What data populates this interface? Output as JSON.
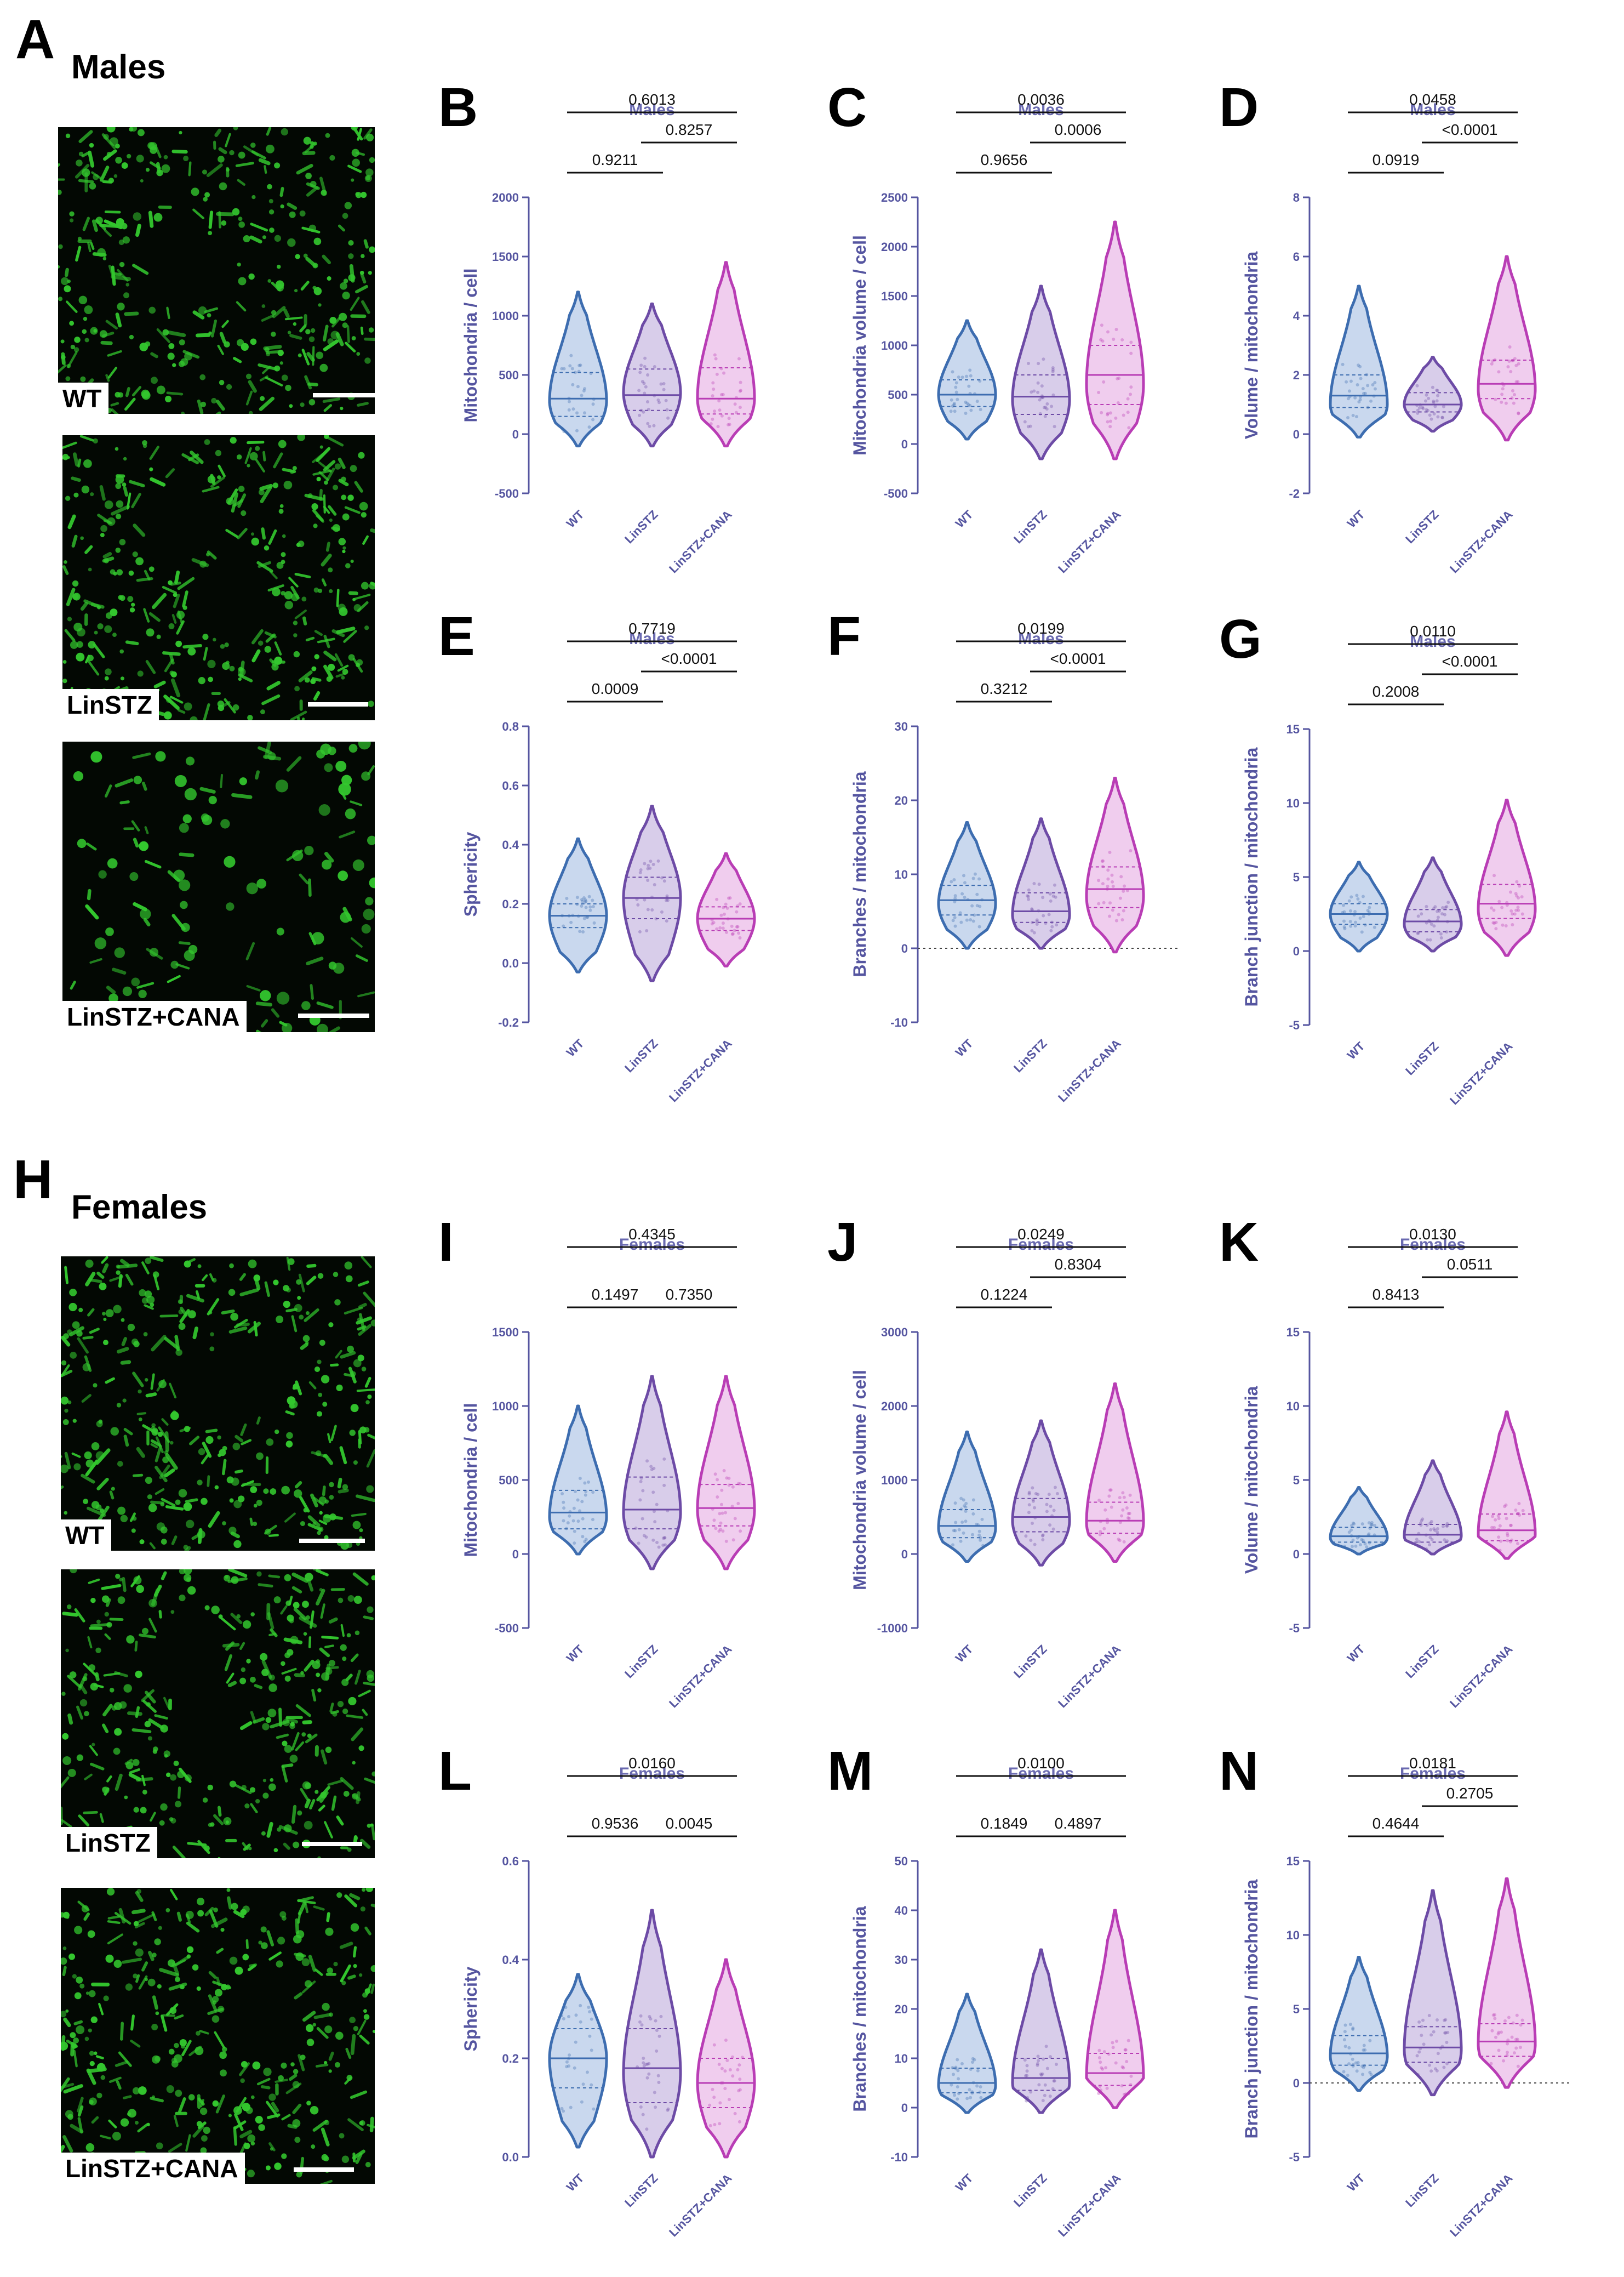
{
  "sections": {
    "males": {
      "letter": "A",
      "title": "Males"
    },
    "females": {
      "letter": "H",
      "title": "Females"
    }
  },
  "micrographs": [
    {
      "label": "WT"
    },
    {
      "label": "LinSTZ"
    },
    {
      "label": "LinSTZ+CANA"
    },
    {
      "label": "WT"
    },
    {
      "label": "LinSTZ"
    },
    {
      "label": "LinSTZ+CANA"
    }
  ],
  "colors": {
    "WT": "#3d6db0",
    "LinSTZ": "#6d4ba6",
    "LinSTZ+CANA": "#b93db5",
    "axis": "#5555a0",
    "title": "#6a6ab0"
  },
  "chart_data": [
    {
      "panel": "B",
      "type": "violin",
      "title": "Males",
      "ylabel": "Mitochondria / cell",
      "categories": [
        "WT",
        "LinSTZ",
        "LinSTZ+CANA"
      ],
      "ylim": [
        -500,
        2000
      ],
      "yticks": [
        -500,
        0,
        500,
        1000,
        1500,
        2000
      ],
      "zero_line": false,
      "series": [
        {
          "min": -100,
          "max": 1200,
          "median": 300,
          "q1": 150,
          "q3": 520,
          "peak": 280
        },
        {
          "min": -100,
          "max": 1100,
          "median": 330,
          "q1": 200,
          "q3": 550,
          "peak": 350
        },
        {
          "min": -100,
          "max": 1450,
          "median": 300,
          "q1": 170,
          "q3": 560,
          "peak": 300
        }
      ],
      "brackets": [
        {
          "from": 0,
          "to": 1,
          "p": "0.9211",
          "level": 1
        },
        {
          "from": 1,
          "to": 2,
          "p": "0.8257",
          "level": 2
        },
        {
          "from": 0,
          "to": 2,
          "p": "0.6013",
          "level": 3
        }
      ]
    },
    {
      "panel": "C",
      "type": "violin",
      "title": "Males",
      "ylabel": "Mitochondria volume / cell",
      "categories": [
        "WT",
        "LinSTZ",
        "LinSTZ+CANA"
      ],
      "ylim": [
        -500,
        2500
      ],
      "yticks": [
        -500,
        0,
        500,
        1000,
        1500,
        2000,
        2500
      ],
      "zero_line": false,
      "series": [
        {
          "min": 50,
          "max": 1250,
          "median": 500,
          "q1": 380,
          "q3": 650,
          "peak": 500
        },
        {
          "min": -150,
          "max": 1600,
          "median": 480,
          "q1": 300,
          "q3": 700,
          "peak": 450
        },
        {
          "min": -150,
          "max": 2250,
          "median": 700,
          "q1": 400,
          "q3": 1000,
          "peak": 600
        }
      ],
      "brackets": [
        {
          "from": 0,
          "to": 1,
          "p": "0.9656",
          "level": 1
        },
        {
          "from": 1,
          "to": 2,
          "p": "0.0006",
          "level": 2
        },
        {
          "from": 0,
          "to": 2,
          "p": "0.0036",
          "level": 3
        }
      ]
    },
    {
      "panel": "D",
      "type": "violin",
      "title": "Males",
      "ylabel": "Volume / mitochondria",
      "categories": [
        "WT",
        "LinSTZ",
        "LinSTZ+CANA"
      ],
      "ylim": [
        -2,
        8
      ],
      "yticks": [
        -2,
        0,
        2,
        4,
        6,
        8
      ],
      "zero_line": false,
      "series": [
        {
          "min": -0.1,
          "max": 5.0,
          "median": 1.3,
          "q1": 0.9,
          "q3": 2.0,
          "peak": 1.0
        },
        {
          "min": 0.1,
          "max": 2.6,
          "median": 1.0,
          "q1": 0.75,
          "q3": 1.4,
          "peak": 1.0
        },
        {
          "min": -0.2,
          "max": 6.0,
          "median": 1.7,
          "q1": 1.2,
          "q3": 2.5,
          "peak": 1.5
        }
      ],
      "brackets": [
        {
          "from": 0,
          "to": 1,
          "p": "0.0919",
          "level": 1
        },
        {
          "from": 1,
          "to": 2,
          "p": "<0.0001",
          "level": 2
        },
        {
          "from": 0,
          "to": 2,
          "p": "0.0458",
          "level": 3
        }
      ]
    },
    {
      "panel": "E",
      "type": "violin",
      "title": "Males",
      "ylabel": "Sphericity",
      "categories": [
        "WT",
        "LinSTZ",
        "LinSTZ+CANA"
      ],
      "ylim": [
        -0.2,
        0.8
      ],
      "yticks": [
        -0.2,
        0.0,
        0.2,
        0.4,
        0.6,
        0.8
      ],
      "zero_line": false,
      "series": [
        {
          "min": -0.03,
          "max": 0.42,
          "median": 0.16,
          "q1": 0.12,
          "q3": 0.2,
          "peak": 0.16
        },
        {
          "min": -0.06,
          "max": 0.53,
          "median": 0.22,
          "q1": 0.15,
          "q3": 0.29,
          "peak": 0.22
        },
        {
          "min": -0.01,
          "max": 0.37,
          "median": 0.15,
          "q1": 0.11,
          "q3": 0.19,
          "peak": 0.15
        }
      ],
      "brackets": [
        {
          "from": 0,
          "to": 1,
          "p": "0.0009",
          "level": 1
        },
        {
          "from": 1,
          "to": 2,
          "p": "<0.0001",
          "level": 2
        },
        {
          "from": 0,
          "to": 2,
          "p": "0.7719",
          "level": 3
        }
      ]
    },
    {
      "panel": "F",
      "type": "violin",
      "title": "Males",
      "ylabel": "Branches / mitochondria",
      "categories": [
        "WT",
        "LinSTZ",
        "LinSTZ+CANA"
      ],
      "ylim": [
        -10,
        30
      ],
      "yticks": [
        -10,
        0,
        10,
        20,
        30
      ],
      "zero_line": true,
      "series": [
        {
          "min": 0,
          "max": 17,
          "median": 6.5,
          "q1": 4.5,
          "q3": 8.5,
          "peak": 6
        },
        {
          "min": 0,
          "max": 17.5,
          "median": 5,
          "q1": 3.5,
          "q3": 7.5,
          "peak": 4.5
        },
        {
          "min": -0.5,
          "max": 23,
          "median": 8,
          "q1": 5.5,
          "q3": 11,
          "peak": 7
        }
      ],
      "brackets": [
        {
          "from": 0,
          "to": 1,
          "p": "0.3212",
          "level": 1
        },
        {
          "from": 1,
          "to": 2,
          "p": "<0.0001",
          "level": 2
        },
        {
          "from": 0,
          "to": 2,
          "p": "0.0199",
          "level": 3
        }
      ]
    },
    {
      "panel": "G",
      "type": "violin",
      "title": "Males",
      "ylabel": "Branch junction / mitochondria",
      "categories": [
        "WT",
        "LinSTZ",
        "LinSTZ+CANA"
      ],
      "ylim": [
        -5,
        15
      ],
      "yticks": [
        -5,
        0,
        5,
        10,
        15
      ],
      "zero_line": false,
      "series": [
        {
          "min": 0,
          "max": 6,
          "median": 2.5,
          "q1": 1.8,
          "q3": 3.2,
          "peak": 2.5
        },
        {
          "min": 0,
          "max": 6.3,
          "median": 2,
          "q1": 1.3,
          "q3": 2.8,
          "peak": 1.8
        },
        {
          "min": -0.3,
          "max": 10.2,
          "median": 3.2,
          "q1": 2.2,
          "q3": 4.5,
          "peak": 2.8
        }
      ],
      "brackets": [
        {
          "from": 0,
          "to": 1,
          "p": "0.2008",
          "level": 1
        },
        {
          "from": 1,
          "to": 2,
          "p": "<0.0001",
          "level": 2
        },
        {
          "from": 0,
          "to": 2,
          "p": "0.0110",
          "level": 3
        }
      ]
    },
    {
      "panel": "I",
      "type": "violin",
      "title": "Females",
      "ylabel": "Mitochondria / cell",
      "categories": [
        "WT",
        "LinSTZ",
        "LinSTZ+CANA"
      ],
      "ylim": [
        -500,
        1500
      ],
      "yticks": [
        -500,
        0,
        500,
        1000,
        1500
      ],
      "zero_line": false,
      "series": [
        {
          "min": 0,
          "max": 1000,
          "median": 280,
          "q1": 170,
          "q3": 430,
          "peak": 250
        },
        {
          "min": -100,
          "max": 1200,
          "median": 300,
          "q1": 170,
          "q3": 520,
          "peak": 280
        },
        {
          "min": -100,
          "max": 1200,
          "median": 310,
          "q1": 190,
          "q3": 470,
          "peak": 300
        }
      ],
      "brackets": [
        {
          "from": 0,
          "to": 1,
          "p": "0.1497",
          "level": 1
        },
        {
          "from": 1,
          "to": 2,
          "p": "0.7350",
          "level": 1
        },
        {
          "from": 0,
          "to": 2,
          "p": "0.4345",
          "level": 3
        }
      ]
    },
    {
      "panel": "J",
      "type": "violin",
      "title": "Females",
      "ylabel": "Mitochondria volume / cell",
      "categories": [
        "WT",
        "LinSTZ",
        "LinSTZ+CANA"
      ],
      "ylim": [
        -1000,
        3000
      ],
      "yticks": [
        -1000,
        0,
        1000,
        2000,
        3000
      ],
      "zero_line": false,
      "series": [
        {
          "min": -100,
          "max": 1650,
          "median": 380,
          "q1": 220,
          "q3": 600,
          "peak": 350
        },
        {
          "min": -150,
          "max": 1800,
          "median": 500,
          "q1": 300,
          "q3": 750,
          "peak": 450
        },
        {
          "min": -100,
          "max": 2300,
          "median": 450,
          "q1": 280,
          "q3": 700,
          "peak": 420
        }
      ],
      "brackets": [
        {
          "from": 0,
          "to": 1,
          "p": "0.1224",
          "level": 1
        },
        {
          "from": 1,
          "to": 2,
          "p": "0.8304",
          "level": 2
        },
        {
          "from": 0,
          "to": 2,
          "p": "0.0249",
          "level": 3
        }
      ]
    },
    {
      "panel": "K",
      "type": "violin",
      "title": "Females",
      "ylabel": "Volume / mitochondria",
      "categories": [
        "WT",
        "LinSTZ",
        "LinSTZ+CANA"
      ],
      "ylim": [
        -5,
        15
      ],
      "yticks": [
        -5,
        0,
        5,
        10,
        15
      ],
      "zero_line": false,
      "series": [
        {
          "min": 0,
          "max": 4.5,
          "median": 1.2,
          "q1": 0.8,
          "q3": 1.8,
          "peak": 1.1
        },
        {
          "min": 0,
          "max": 6.3,
          "median": 1.3,
          "q1": 0.8,
          "q3": 2.0,
          "peak": 1.2
        },
        {
          "min": -0.3,
          "max": 9.6,
          "median": 1.6,
          "q1": 0.9,
          "q3": 2.7,
          "peak": 1.3
        }
      ],
      "brackets": [
        {
          "from": 0,
          "to": 1,
          "p": "0.8413",
          "level": 1
        },
        {
          "from": 1,
          "to": 2,
          "p": "0.0511",
          "level": 2
        },
        {
          "from": 0,
          "to": 2,
          "p": "0.0130",
          "level": 3
        }
      ]
    },
    {
      "panel": "L",
      "type": "violin",
      "title": "Females",
      "ylabel": "Sphericity",
      "categories": [
        "WT",
        "LinSTZ",
        "LinSTZ+CANA"
      ],
      "ylim": [
        0.0,
        0.6
      ],
      "yticks": [
        0.0,
        0.2,
        0.4,
        0.6
      ],
      "zero_line": false,
      "series": [
        {
          "min": 0.02,
          "max": 0.37,
          "median": 0.2,
          "q1": 0.14,
          "q3": 0.26,
          "peak": 0.2
        },
        {
          "min": 0.0,
          "max": 0.5,
          "median": 0.18,
          "q1": 0.11,
          "q3": 0.26,
          "peak": 0.17
        },
        {
          "min": 0.0,
          "max": 0.4,
          "median": 0.15,
          "q1": 0.1,
          "q3": 0.2,
          "peak": 0.15
        }
      ],
      "brackets": [
        {
          "from": 0,
          "to": 1,
          "p": "0.9536",
          "level": 1
        },
        {
          "from": 1,
          "to": 2,
          "p": "0.0045",
          "level": 1
        },
        {
          "from": 0,
          "to": 2,
          "p": "0.0160",
          "level": 3
        }
      ]
    },
    {
      "panel": "M",
      "type": "violin",
      "title": "Females",
      "ylabel": "Branches / mitochondria",
      "categories": [
        "WT",
        "LinSTZ",
        "LinSTZ+CANA"
      ],
      "ylim": [
        -10,
        50
      ],
      "yticks": [
        -10,
        0,
        10,
        20,
        30,
        40,
        50
      ],
      "zero_line": false,
      "series": [
        {
          "min": -1,
          "max": 23,
          "median": 5,
          "q1": 3,
          "q3": 8,
          "peak": 4.5
        },
        {
          "min": -1,
          "max": 32,
          "median": 6,
          "q1": 3.5,
          "q3": 10,
          "peak": 5
        },
        {
          "min": 0,
          "max": 40,
          "median": 7,
          "q1": 4.5,
          "q3": 11,
          "peak": 6
        }
      ],
      "brackets": [
        {
          "from": 0,
          "to": 1,
          "p": "0.1849",
          "level": 1
        },
        {
          "from": 1,
          "to": 2,
          "p": "0.4897",
          "level": 1
        },
        {
          "from": 0,
          "to": 2,
          "p": "0.0100",
          "level": 3
        }
      ]
    },
    {
      "panel": "N",
      "type": "violin",
      "title": "Females",
      "ylabel": "Branch junction / mitochondria",
      "categories": [
        "WT",
        "LinSTZ",
        "LinSTZ+CANA"
      ],
      "ylim": [
        -5,
        15
      ],
      "yticks": [
        -5,
        0,
        5,
        10,
        15
      ],
      "zero_line": true,
      "series": [
        {
          "min": -0.5,
          "max": 8.5,
          "median": 2,
          "q1": 1.2,
          "q3": 3.2,
          "peak": 1.8
        },
        {
          "min": -0.8,
          "max": 13,
          "median": 2.4,
          "q1": 1.4,
          "q3": 3.8,
          "peak": 2.2
        },
        {
          "min": -0.3,
          "max": 13.8,
          "median": 2.8,
          "q1": 1.8,
          "q3": 4,
          "peak": 2.6
        }
      ],
      "brackets": [
        {
          "from": 0,
          "to": 1,
          "p": "0.4644",
          "level": 1
        },
        {
          "from": 1,
          "to": 2,
          "p": "0.2705",
          "level": 2
        },
        {
          "from": 0,
          "to": 2,
          "p": "0.0181",
          "level": 3
        }
      ]
    }
  ]
}
